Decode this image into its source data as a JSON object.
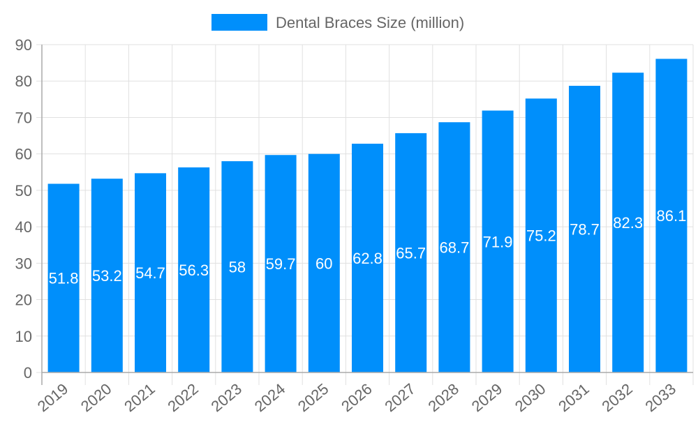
{
  "chart_data": {
    "type": "bar",
    "categories": [
      "2019",
      "2020",
      "2021",
      "2022",
      "2023",
      "2024",
      "2025",
      "2026",
      "2027",
      "2028",
      "2029",
      "2030",
      "2031",
      "2032",
      "2033"
    ],
    "series": [
      {
        "name": "Dental Braces Size (million)",
        "values": [
          51.8,
          53.2,
          54.7,
          56.3,
          58,
          59.7,
          60,
          62.8,
          65.7,
          68.7,
          71.9,
          75.2,
          78.7,
          82.3,
          86.1
        ]
      }
    ],
    "title": "",
    "xlabel": "",
    "ylabel": "",
    "ylim": [
      0,
      90
    ],
    "yticks": [
      0,
      10,
      20,
      30,
      40,
      50,
      60,
      70,
      80,
      90
    ],
    "grid": true,
    "legend": "top-center",
    "data_labels": "inside-center",
    "colors": {
      "bar": "#008ffb",
      "label": "#ffffff",
      "axis_text": "#666666",
      "grid": "#e0e0e0"
    }
  }
}
